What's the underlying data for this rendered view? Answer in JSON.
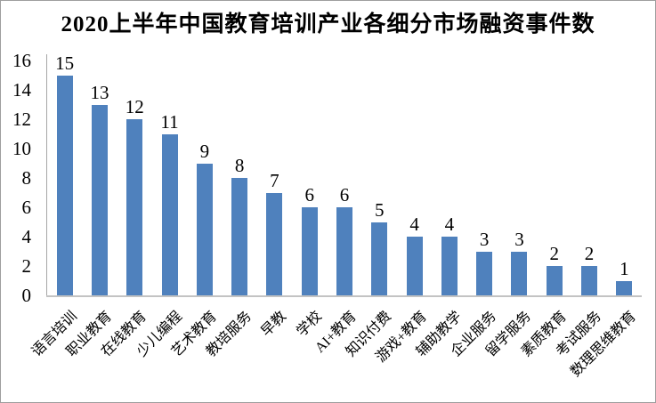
{
  "chart_data": {
    "type": "bar",
    "title": "2020上半年中国教育培训产业各细分市场融资事件数",
    "categories": [
      "语言培训",
      "职业教育",
      "在线教育",
      "少儿编程",
      "艺术教育",
      "教培服务",
      "早教",
      "学校",
      "AI+教育",
      "知识付费",
      "游戏+教育",
      "辅助教学",
      "企业服务",
      "留学服务",
      "素质教育",
      "考试服务",
      "数理思维教育"
    ],
    "values": [
      15,
      13,
      12,
      11,
      9,
      8,
      7,
      6,
      6,
      5,
      4,
      4,
      3,
      3,
      2,
      2,
      1
    ],
    "xlabel": "",
    "ylabel": "",
    "ylim": [
      0,
      16
    ],
    "yticks": [
      0,
      2,
      4,
      6,
      8,
      10,
      12,
      14,
      16
    ],
    "grid": false,
    "legend_position": "none",
    "data_labels": true,
    "bar_color": "#4f81bd",
    "axis_line_color": "#a6a6a6",
    "baseline_color": "#c3c3c3",
    "text_color": "#000000",
    "background_color": "#ffffff"
  }
}
